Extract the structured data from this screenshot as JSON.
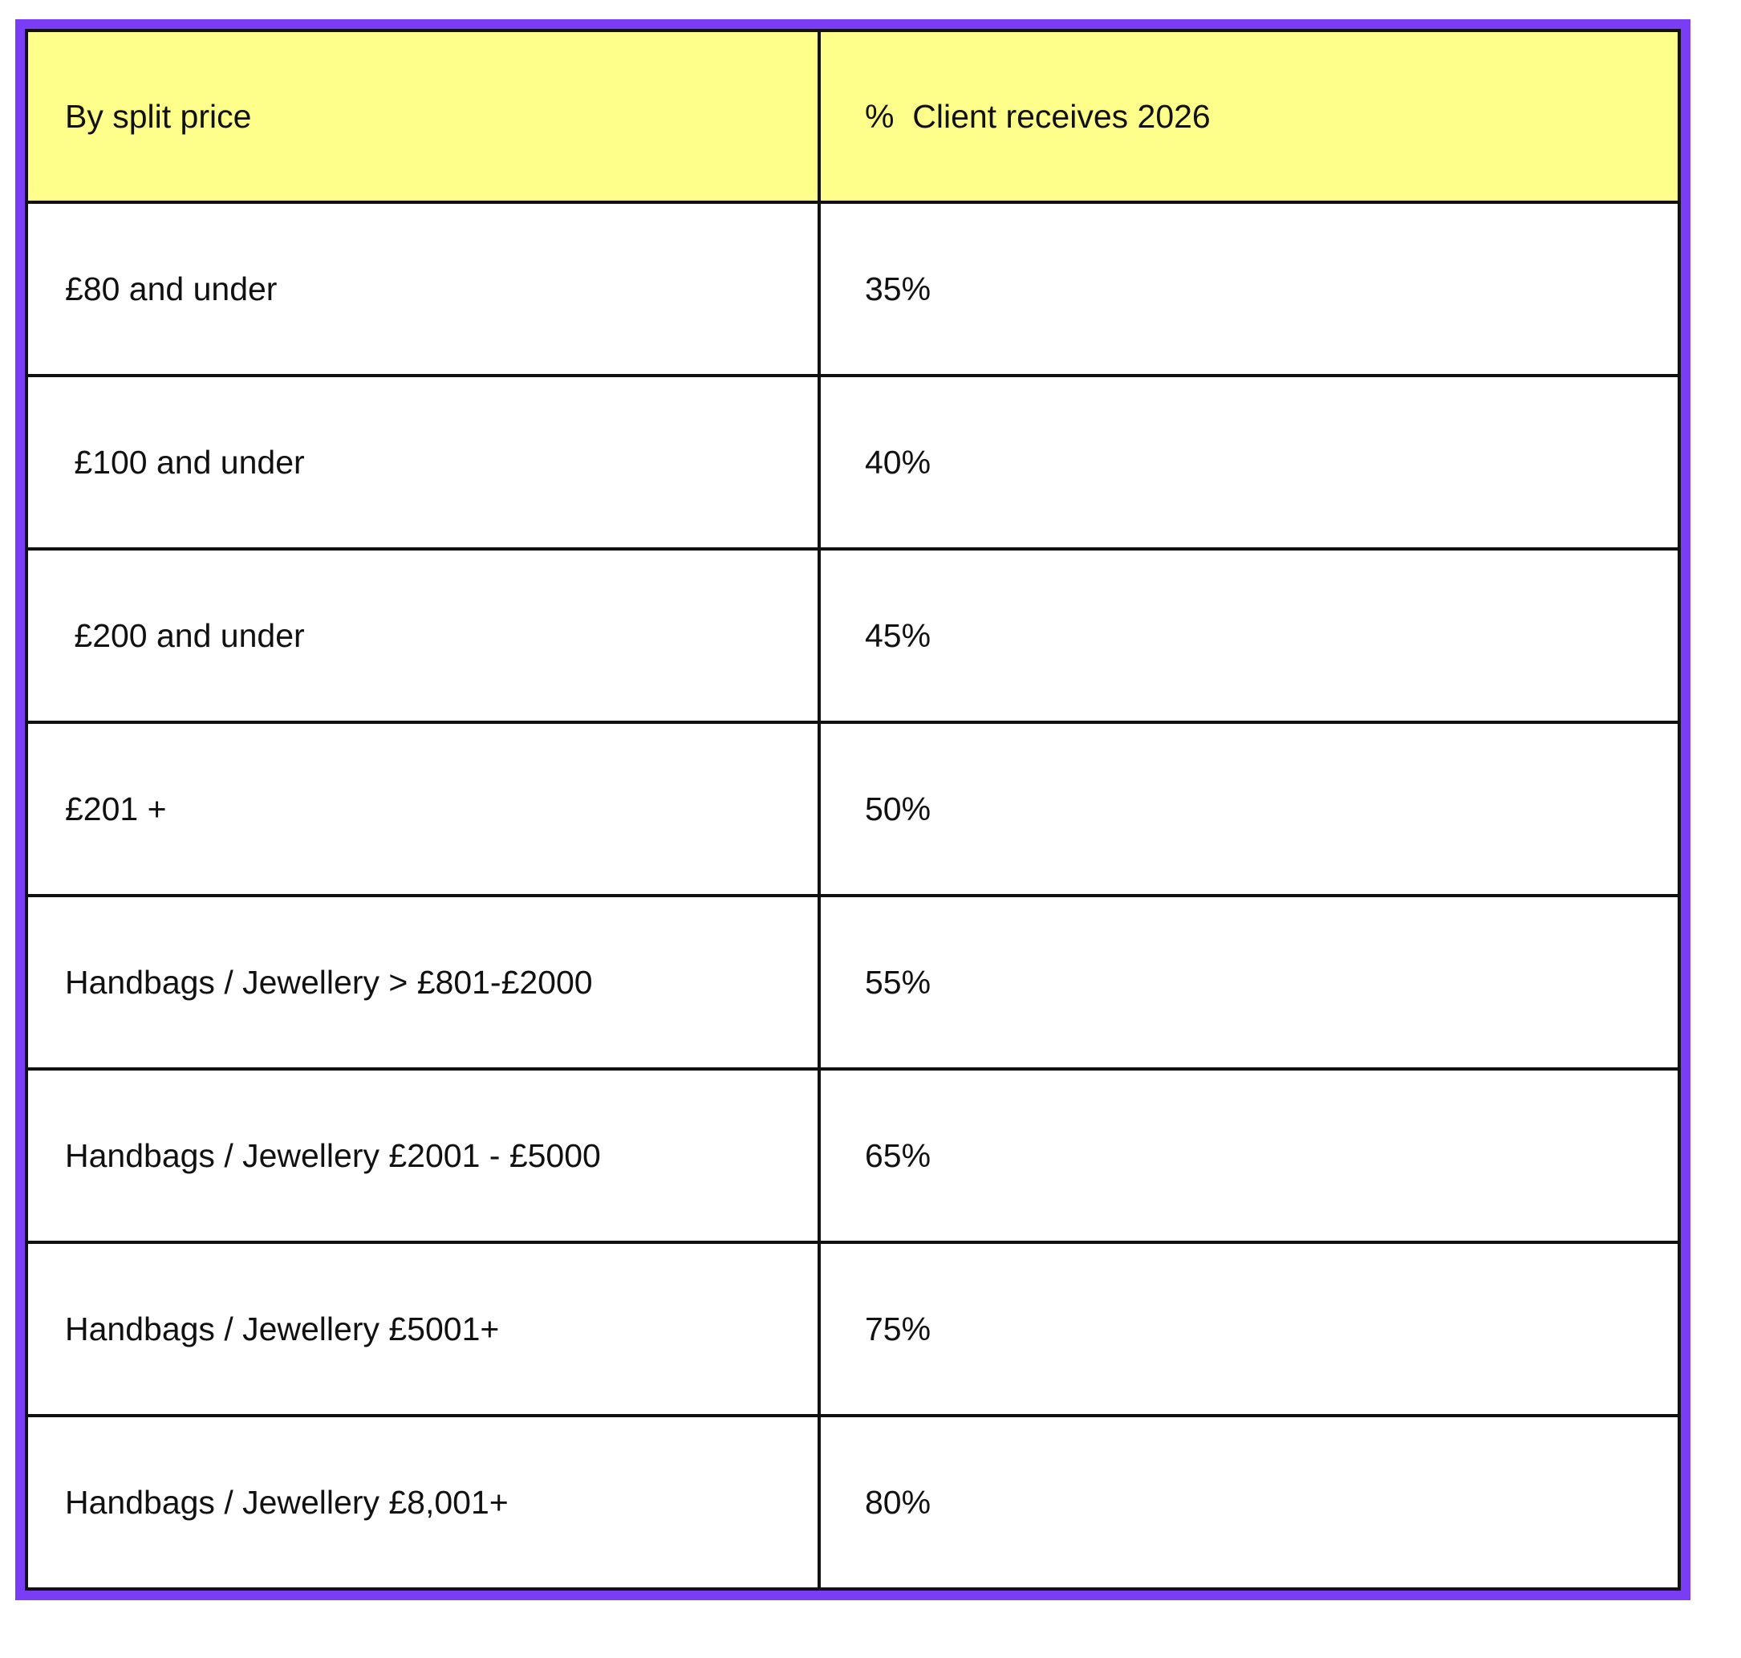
{
  "colors": {
    "frame": "#7b3cf5",
    "header_bg": "#fefe8a",
    "border": "#111111"
  },
  "table": {
    "headers": [
      "By split price",
      "%  Client receives 2026"
    ],
    "rows": [
      [
        "£80 and under",
        "35%"
      ],
      [
        " £100 and under",
        "40%"
      ],
      [
        " £200 and under",
        "45%"
      ],
      [
        "£201 +",
        "50%"
      ],
      [
        "Handbags / Jewellery > £801-£2000",
        "55%"
      ],
      [
        "Handbags / Jewellery £2001 - £5000",
        "65%"
      ],
      [
        "Handbags / Jewellery £5001+",
        "75%"
      ],
      [
        "Handbags / Jewellery £8,001+",
        "80%"
      ]
    ]
  }
}
